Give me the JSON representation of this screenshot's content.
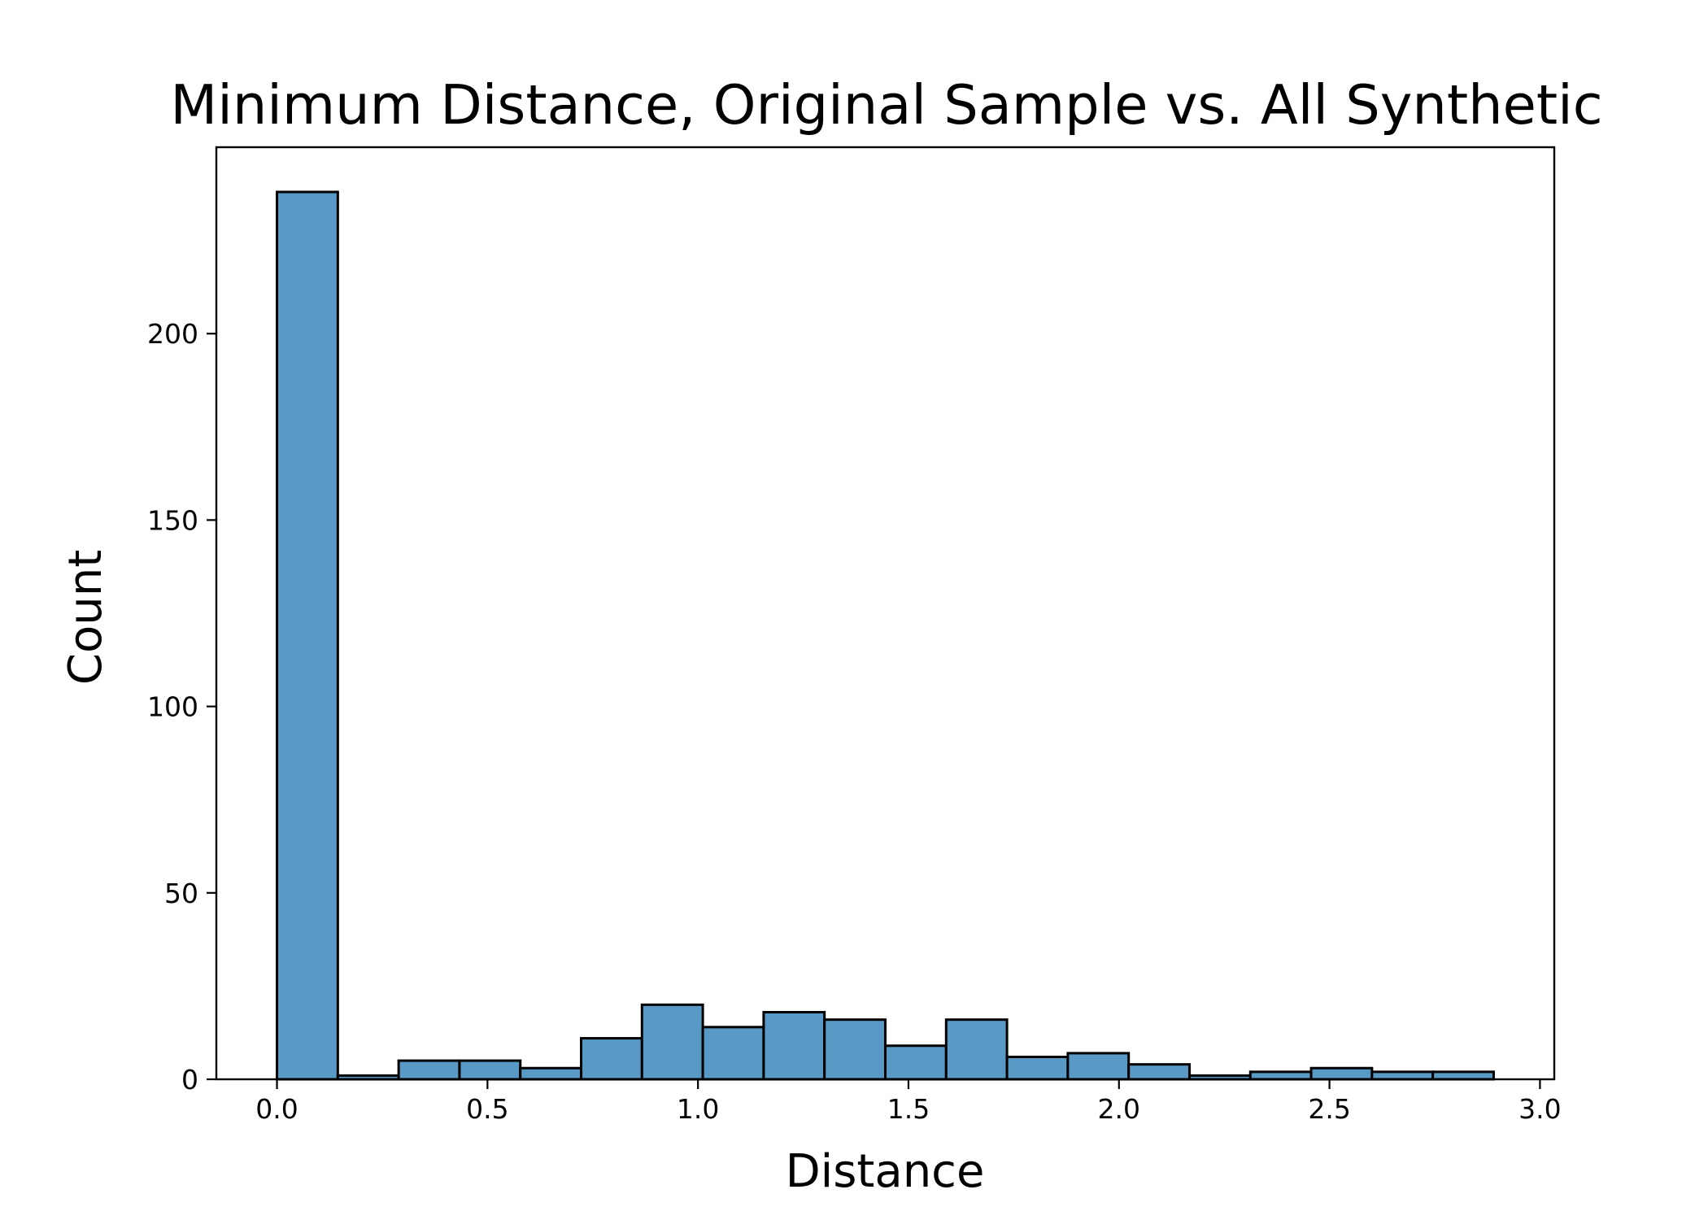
{
  "chart_data": {
    "type": "bar",
    "subtype": "histogram",
    "title": "Minimum Distance, Original Sample vs. All Synthetic",
    "xlabel": "Distance",
    "ylabel": "Count",
    "xlim": [
      -0.144,
      3.034
    ],
    "ylim": [
      0,
      250
    ],
    "xticks": [
      0.0,
      0.5,
      1.0,
      1.5,
      2.0,
      2.5,
      3.0
    ],
    "xtick_labels": [
      "0.0",
      "0.5",
      "1.0",
      "1.5",
      "2.0",
      "2.5",
      "3.0"
    ],
    "yticks": [
      0,
      50,
      100,
      150,
      200
    ],
    "ytick_labels": [
      "0",
      "50",
      "100",
      "150",
      "200"
    ],
    "bin_width": 0.1445,
    "bins": [
      {
        "x0": 0.0,
        "count": 238
      },
      {
        "x0": 0.1445,
        "count": 1
      },
      {
        "x0": 0.289,
        "count": 5
      },
      {
        "x0": 0.4335,
        "count": 5
      },
      {
        "x0": 0.578,
        "count": 3
      },
      {
        "x0": 0.7225,
        "count": 11
      },
      {
        "x0": 0.867,
        "count": 20
      },
      {
        "x0": 1.0115,
        "count": 14
      },
      {
        "x0": 1.156,
        "count": 18
      },
      {
        "x0": 1.3005,
        "count": 16
      },
      {
        "x0": 1.445,
        "count": 9
      },
      {
        "x0": 1.5895,
        "count": 16
      },
      {
        "x0": 1.734,
        "count": 6
      },
      {
        "x0": 1.8785,
        "count": 7
      },
      {
        "x0": 2.023,
        "count": 4
      },
      {
        "x0": 2.1675,
        "count": 1
      },
      {
        "x0": 2.312,
        "count": 2
      },
      {
        "x0": 2.4565,
        "count": 3
      },
      {
        "x0": 2.601,
        "count": 2
      },
      {
        "x0": 2.7455,
        "count": 2
      }
    ],
    "grid": false,
    "legend": "none",
    "colors": {
      "bar_fill": "#5899c5",
      "bar_edge": "#000000",
      "axis": "#000000",
      "background": "#ffffff"
    }
  }
}
